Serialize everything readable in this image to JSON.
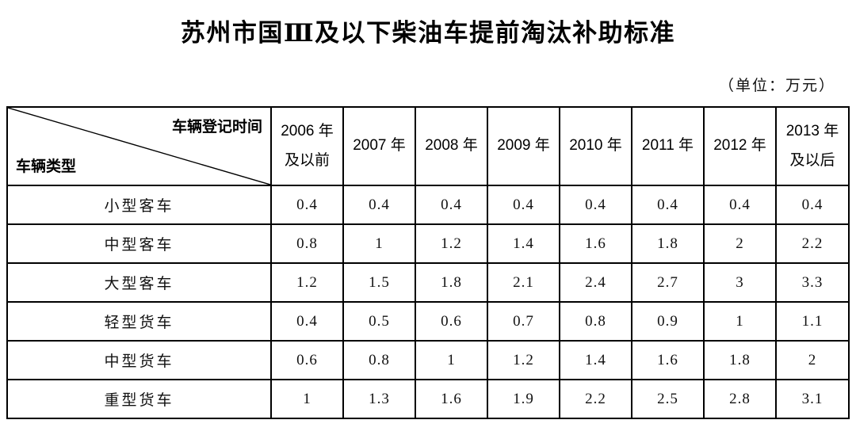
{
  "page": {
    "title": "苏州市国Ⅲ及以下柴油车提前淘汰补助标准",
    "unit_note": "（单位：万元）"
  },
  "table": {
    "corner": {
      "top_right_label": "车辆登记时间",
      "bottom_left_label": "车辆类型"
    },
    "column_headers": [
      "2006 年\n及以前",
      "2007 年",
      "2008 年",
      "2009 年",
      "2010 年",
      "2011 年",
      "2012 年",
      "2013 年\n及以后"
    ],
    "rows": [
      {
        "label": "小型客车",
        "values": [
          "0.4",
          "0.4",
          "0.4",
          "0.4",
          "0.4",
          "0.4",
          "0.4",
          "0.4"
        ]
      },
      {
        "label": "中型客车",
        "values": [
          "0.8",
          "1",
          "1.2",
          "1.4",
          "1.6",
          "1.8",
          "2",
          "2.2"
        ]
      },
      {
        "label": "大型客车",
        "values": [
          "1.2",
          "1.5",
          "1.8",
          "2.1",
          "2.4",
          "2.7",
          "3",
          "3.3"
        ]
      },
      {
        "label": "轻型货车",
        "values": [
          "0.4",
          "0.5",
          "0.6",
          "0.7",
          "0.8",
          "0.9",
          "1",
          "1.1"
        ]
      },
      {
        "label": "中型货车",
        "values": [
          "0.6",
          "0.8",
          "1",
          "1.2",
          "1.4",
          "1.6",
          "1.8",
          "2"
        ]
      },
      {
        "label": "重型货车",
        "values": [
          "1",
          "1.3",
          "1.6",
          "1.9",
          "2.2",
          "2.5",
          "2.8",
          "3.1"
        ]
      }
    ]
  }
}
